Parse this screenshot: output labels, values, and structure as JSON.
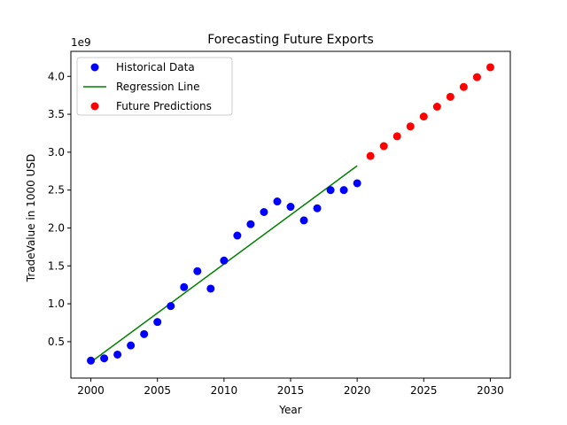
{
  "chart_data": {
    "type": "scatter",
    "title": "Forecasting Future Exports",
    "xlabel": "Year",
    "ylabel": "TradeValue in 1000 USD",
    "y_offset_label": "1e9",
    "xlim": [
      1998.5,
      2031.5
    ],
    "ylim": [
      0.02,
      4.33
    ],
    "y_scale_factor": 1000000000,
    "x_ticks": [
      2000,
      2005,
      2010,
      2015,
      2020,
      2025,
      2030
    ],
    "y_ticks": [
      0.5,
      1.0,
      1.5,
      2.0,
      2.5,
      3.0,
      3.5,
      4.0
    ],
    "y_tick_labels": [
      "0.5",
      "1.0",
      "1.5",
      "2.0",
      "2.5",
      "3.0",
      "3.5",
      "4.0"
    ],
    "grid": false,
    "legend_position": "top-left",
    "series": [
      {
        "name": "Historical Data",
        "kind": "scatter",
        "color": "#0000ff",
        "x": [
          2000,
          2001,
          2002,
          2003,
          2004,
          2005,
          2006,
          2007,
          2008,
          2009,
          2010,
          2011,
          2012,
          2013,
          2014,
          2015,
          2016,
          2017,
          2018,
          2019,
          2020
        ],
        "y": [
          0.25,
          0.28,
          0.33,
          0.45,
          0.6,
          0.76,
          0.97,
          1.22,
          1.43,
          1.2,
          1.57,
          1.9,
          2.05,
          2.21,
          2.35,
          2.28,
          2.1,
          2.26,
          2.5,
          2.5,
          2.59
        ]
      },
      {
        "name": "Regression Line",
        "kind": "line",
        "color": "#008000",
        "x": [
          2000,
          2020
        ],
        "y": [
          0.23,
          2.82
        ]
      },
      {
        "name": "Future Predictions",
        "kind": "scatter",
        "color": "#ff0000",
        "x": [
          2021,
          2022,
          2023,
          2024,
          2025,
          2026,
          2027,
          2028,
          2029,
          2030
        ],
        "y": [
          2.95,
          3.08,
          3.21,
          3.34,
          3.47,
          3.6,
          3.73,
          3.86,
          3.99,
          4.12
        ]
      }
    ]
  }
}
